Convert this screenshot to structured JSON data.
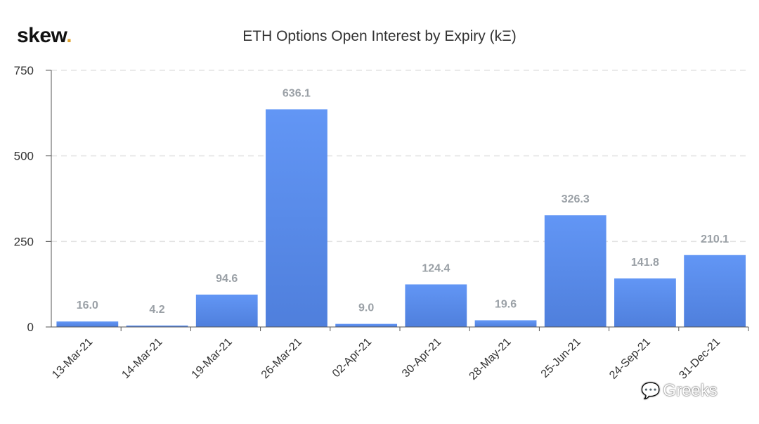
{
  "header": {
    "logo_text": "skew",
    "logo_dot": ".",
    "title": "ETH Options Open Interest by Expiry (kΞ)"
  },
  "watermark": {
    "text": "Greeks",
    "icon": "wechat-icon"
  },
  "colors": {
    "bar_top": "#6296f5",
    "bar_bottom": "#4f7fdc",
    "grid": "#e3e3e3",
    "axis": "#555555",
    "logo_dot": "#e0a430"
  },
  "chart_data": {
    "type": "bar",
    "title": "ETH Options Open Interest by Expiry (kΞ)",
    "xlabel": "",
    "ylabel": "",
    "ylim": [
      0,
      750
    ],
    "yticks": [
      0,
      250,
      500,
      750
    ],
    "grid": "horizontal dashed",
    "categories": [
      "13-Mar-21",
      "14-Mar-21",
      "19-Mar-21",
      "26-Mar-21",
      "02-Apr-21",
      "30-Apr-21",
      "28-May-21",
      "25-Jun-21",
      "24-Sep-21",
      "31-Dec-21"
    ],
    "values": [
      16.0,
      4.2,
      94.6,
      636.1,
      9.0,
      124.4,
      19.6,
      326.3,
      141.8,
      210.1
    ],
    "value_labels": [
      "16.0",
      "4.2",
      "94.6",
      "636.1",
      "9.0",
      "124.4",
      "19.6",
      "326.3",
      "141.8",
      "210.1"
    ]
  }
}
